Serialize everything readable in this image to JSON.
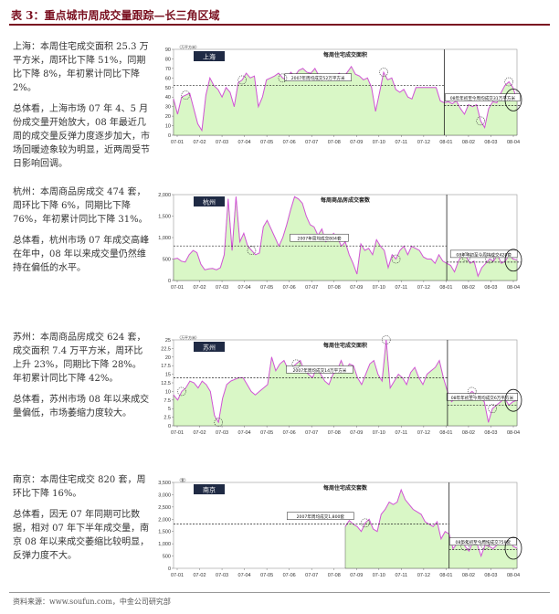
{
  "page": {
    "title": "表 3：重点城市周成交量跟踪—长三角区域",
    "footer": "资料来源：www.soufun.com，中金公司研究部"
  },
  "styles": {
    "area_fill": "#d9f7c6",
    "line_color": "#d255d6",
    "accent": "#7a1020",
    "tag_fill": "#1f2a44"
  },
  "chart_data": [
    {
      "type": "area",
      "city_tag": "上海",
      "title": "每周住宅成交面积",
      "unit": "（万平方米）",
      "text": [
        "上海：本周住宅成交面积 25.3 万平方米，周环比下降 51%，同期比下降 8%，年初累计同比下降 2%。",
        "总体看，上海市场 07 年 4、5 月份成交量开始放大，08 年最近几周的成交量反弹力度逐步加大，市场回暖迹象较为明显，近两周受节日影响回调。"
      ],
      "x_labels": [
        "07-01",
        "07-02",
        "07-03",
        "07-04",
        "07-05",
        "07-06",
        "07-07",
        "07-08",
        "07-09",
        "07-10",
        "07-11",
        "07-12",
        "08-01",
        "08-02",
        "08-03",
        "08-04"
      ],
      "ylim": [
        0,
        90
      ],
      "yticks": [
        0,
        10,
        20,
        30,
        40,
        50,
        60,
        70,
        80,
        90
      ],
      "values": [
        38,
        22,
        40,
        42,
        44,
        28,
        12,
        5,
        42,
        60,
        52,
        48,
        40,
        50,
        45,
        30,
        55,
        58,
        65,
        60,
        62,
        30,
        40,
        58,
        60,
        62,
        65,
        60,
        58,
        66,
        62,
        68,
        70,
        66,
        65,
        70,
        62,
        58,
        63,
        60,
        62,
        65,
        60,
        66,
        72,
        64,
        62,
        58,
        60,
        50,
        25,
        45,
        66,
        58,
        60,
        48,
        45,
        48,
        40,
        38,
        50,
        50,
        50,
        50,
        50,
        50,
        36,
        34,
        35,
        33,
        36,
        28,
        22,
        32,
        30,
        32,
        15,
        8,
        28,
        35,
        34,
        44,
        52,
        56,
        50,
        37
      ],
      "avg_lines": [
        {
          "label": "2007年周均成交52万平方米",
          "value": 52,
          "from": 0,
          "to": 67
        },
        {
          "label": "08年年初至今周均成交31万平方米",
          "value": 31,
          "from": 67,
          "to": 86
        }
      ],
      "separator_index": 67,
      "circles": [
        3,
        17,
        27,
        52,
        76,
        83
      ],
      "end_ellipse": 85
    },
    {
      "type": "area",
      "city_tag": "杭州",
      "title": "每周商品房成交套数",
      "unit": "",
      "text": [
        "杭州：本周商品房成交 474 套，周环比下降 6%，同期比下降 76%，年初累计同比下降 31%。",
        "总体看，杭州市场 07 年成交高峰在年中，08 年以来成交量仍然维持在偏低的水平。"
      ],
      "x_labels": [
        "07-01",
        "07-02",
        "07-03",
        "07-04",
        "07-05",
        "07-06",
        "07-07",
        "07-08",
        "07-09",
        "07-10",
        "07-11",
        "07-12",
        "08-01",
        "08-02",
        "08-03",
        "08-04"
      ],
      "ylim": [
        0,
        2000
      ],
      "yticks": [
        0,
        500,
        1000,
        1500,
        2000
      ],
      "values": [
        500,
        520,
        450,
        430,
        600,
        700,
        650,
        380,
        250,
        270,
        280,
        250,
        300,
        600,
        1900,
        700,
        1950,
        900,
        1100,
        800,
        700,
        600,
        640,
        1250,
        1400,
        1200,
        1000,
        800,
        1000,
        1300,
        1650,
        1950,
        1900,
        1800,
        1500,
        1300,
        1250,
        1050,
        1200,
        900,
        950,
        1100,
        1000,
        800,
        900,
        600,
        400,
        150,
        850,
        700,
        750,
        600,
        950,
        800,
        700,
        300,
        600,
        500,
        700,
        800,
        600,
        800,
        750,
        700,
        550,
        500,
        500,
        400,
        600,
        450,
        400,
        350,
        200,
        450,
        600,
        550,
        400,
        450,
        100,
        300,
        400,
        500,
        450,
        600,
        400,
        450,
        600,
        500,
        474
      ],
      "avg_lines": [
        {
          "label": "2007年周均成交804套",
          "value": 804,
          "from": 0,
          "to": 70
        },
        {
          "label": "08年年初至今周均成交428套",
          "value": 428,
          "from": 70,
          "to": 89
        }
      ],
      "separator_index": 70,
      "circles": [
        20,
        57,
        75,
        81
      ],
      "end_ellipse": 88
    },
    {
      "type": "area",
      "city_tag": "苏州",
      "title": "每周住宅成交面积",
      "unit": "（万平方米）",
      "text": [
        "苏州：本周商品房成交 624 套，成交面积 7.4 万平方米，周环比上升 23%，同期比下降 28%。年初累计同比下降 42%。",
        "总体看，苏州市场 08 年以来成交量偏低，市场萎缩力度较大。"
      ],
      "x_labels": [
        "07-01",
        "07-02",
        "07-03",
        "07-04",
        "07-05",
        "07-06",
        "07-07",
        "07-08",
        "07-09",
        "07-10",
        "07-11",
        "07-12",
        "08-01",
        "08-02",
        "08-03",
        "08-04"
      ],
      "ylim": [
        0,
        25
      ],
      "yticks": [
        0,
        2.5,
        5,
        7.5,
        10,
        12.5,
        15,
        17.5,
        20,
        22.5,
        25
      ],
      "values": [
        9,
        7.5,
        10,
        11,
        13,
        12.5,
        11,
        13,
        12,
        10,
        3,
        1,
        8,
        12,
        13,
        13.5,
        14,
        14,
        12,
        10,
        9,
        10,
        11,
        12,
        20,
        16,
        18,
        19,
        16.5,
        17,
        18,
        19,
        16,
        15,
        14,
        17,
        15,
        13,
        12,
        15,
        16,
        19,
        16,
        18,
        17.5,
        14,
        12,
        15,
        18,
        19,
        15,
        13,
        25,
        11,
        13,
        15,
        14,
        12,
        15.5,
        17,
        14,
        12,
        15,
        16,
        17,
        19,
        14,
        10,
        7,
        8,
        7.5,
        8,
        9,
        10,
        9,
        8,
        7,
        1,
        5,
        6,
        7,
        8,
        6,
        7,
        7.4
      ],
      "avg_lines": [
        {
          "label": "2007年周均成交14万平方米",
          "value": 14,
          "from": 0,
          "to": 67
        },
        {
          "label": "08年年初至今周均成交6万平方米",
          "value": 6,
          "from": 67,
          "to": 84
        }
      ],
      "separator_index": 67,
      "circles": [
        2,
        11,
        30,
        52,
        73,
        78
      ],
      "end_ellipse": 84
    },
    {
      "type": "area",
      "city_tag": "南京",
      "title": "每周住宅成交套数",
      "unit": "（套）",
      "text": [
        "南京：本周住宅成交 820 套，周环比下降 16%。",
        "总体看，因无 07 年同期可比数据，相对 07 年下半年成交量，南京 08 年以来成交萎缩比较明显，反弹力度不大。"
      ],
      "x_labels": [
        "07-01",
        "07-02",
        "07-03",
        "07-04",
        "07-05",
        "07-06",
        "07-07",
        "07-08",
        "07-09",
        "07-10",
        "07-11",
        "07-12",
        "08-01",
        "08-02",
        "08-03",
        "08-04"
      ],
      "ylim": [
        0,
        3500
      ],
      "yticks": [
        0,
        500,
        1000,
        1500,
        2000,
        2500,
        3000,
        3500
      ],
      "values": [
        null,
        null,
        null,
        null,
        null,
        null,
        null,
        null,
        null,
        null,
        null,
        null,
        null,
        null,
        null,
        null,
        null,
        null,
        null,
        null,
        null,
        null,
        null,
        null,
        null,
        null,
        null,
        null,
        null,
        null,
        null,
        null,
        null,
        null,
        null,
        null,
        null,
        null,
        null,
        null,
        null,
        null,
        null,
        1700,
        1950,
        1800,
        1700,
        1500,
        1850,
        2000,
        1600,
        1500,
        2200,
        2400,
        2700,
        2600,
        2700,
        3200,
        2800,
        2600,
        2400,
        2300,
        2200,
        1900,
        1800,
        1700,
        1900,
        1200,
        1500,
        1400,
        800,
        1000,
        1200,
        900,
        700,
        1100,
        1000,
        500,
        950,
        900,
        800,
        950,
        1000,
        1100,
        1200,
        900,
        820
      ],
      "avg_lines": [
        {
          "label": "2007年周均成交1,800套",
          "value": 1800,
          "from": 0,
          "to": 69
        },
        {
          "label": "08年年初至今周均成交759套",
          "value": 759,
          "from": 69,
          "to": 86
        }
      ],
      "separator_index": 69,
      "circles": [
        48,
        73,
        78
      ],
      "end_ellipse": 86
    }
  ]
}
